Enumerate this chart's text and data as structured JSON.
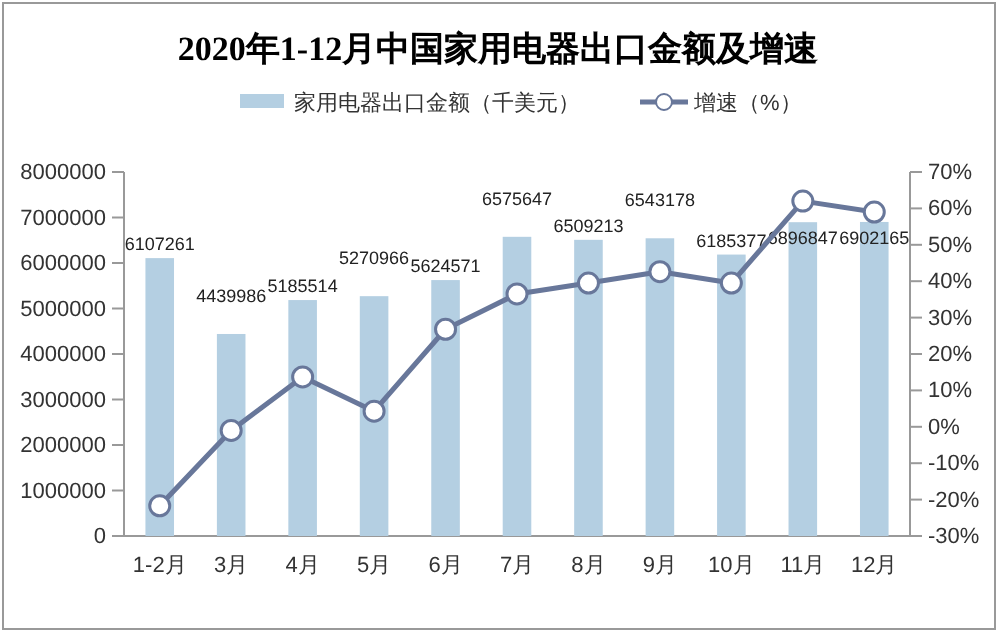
{
  "chart_data": {
    "type": "bar",
    "title": "2020年1-12月中国家用电器出口金额及增速",
    "categories": [
      "1-2月",
      "3月",
      "4月",
      "5月",
      "6月",
      "7月",
      "8月",
      "9月",
      "10月",
      "11月",
      "12月"
    ],
    "series": [
      {
        "name": "家用电器出口金额（千美元）",
        "color": "#b4cfe2",
        "values": [
          6107261,
          4439986,
          5185514,
          5270966,
          5624571,
          6575647,
          6509213,
          6543178,
          6185377,
          6896847,
          6902165
        ],
        "value_labels": [
          "6107261",
          "4439986",
          "5185514",
          "5270966",
          "5624571",
          "6575647",
          "6509213",
          "6543178",
          "6185377",
          "6896847",
          "6902165"
        ]
      },
      {
        "name": "增速（%）",
        "type": "line",
        "axis": "y2",
        "color": "#68779a",
        "marker": "circle",
        "values": [
          -21.7,
          -1,
          13.7,
          4.3,
          26.8,
          36.5,
          39.5,
          42.6,
          39.5,
          62,
          59
        ]
      }
    ],
    "ylim": [
      0,
      8000000
    ],
    "yticks": [
      0,
      1000000,
      2000000,
      3000000,
      4000000,
      5000000,
      6000000,
      7000000,
      8000000
    ],
    "y2lim": [
      -30,
      70
    ],
    "y2ticks": [
      {
        "value": -30,
        "label": "-30%"
      },
      {
        "value": -20,
        "label": "-20%"
      },
      {
        "value": -10,
        "label": "-10%"
      },
      {
        "value": 0,
        "label": "0%"
      },
      {
        "value": 10,
        "label": "10%"
      },
      {
        "value": 20,
        "label": "20%"
      },
      {
        "value": 30,
        "label": "30%"
      },
      {
        "value": 40,
        "label": "40%"
      },
      {
        "value": 50,
        "label": "50%"
      },
      {
        "value": 60,
        "label": "60%"
      },
      {
        "value": 70,
        "label": "70%"
      }
    ],
    "legend": "top",
    "grid": false
  }
}
